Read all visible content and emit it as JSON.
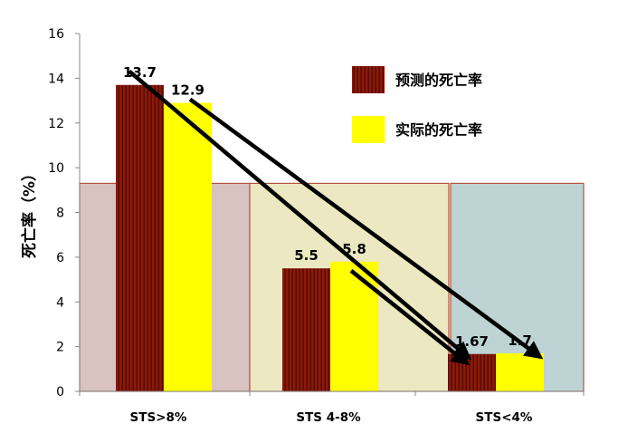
{
  "chart_data": {
    "type": "bar",
    "categories": [
      "STS>8%",
      "STS 4-8%",
      "STS<4%"
    ],
    "series": [
      {
        "name": "预测的死亡率",
        "values": [
          13.7,
          5.5,
          1.67
        ],
        "color": "#8b1a0a"
      },
      {
        "name": "实际的死亡率",
        "values": [
          12.9,
          5.8,
          1.7
        ],
        "color": "#ffff00"
      }
    ],
    "value_labels": [
      [
        "13.7",
        "5.5",
        "1.67"
      ],
      [
        "12.9",
        "5.8",
        "1.7"
      ]
    ],
    "ylabel": "死亡率（%）",
    "ylim": [
      0,
      16
    ],
    "yticks": [
      0,
      2,
      4,
      6,
      8,
      10,
      12,
      14,
      16
    ],
    "legend_position": "top-right",
    "grid": false,
    "background_panels": [
      {
        "category": "STS>8%",
        "color": "#d9c3c1"
      },
      {
        "category": "STS 4-8%",
        "color": "#ece8c1"
      },
      {
        "category": "STS<4%",
        "color": "#bdd3d4"
      }
    ],
    "panel_top_value": 9.3,
    "trend_arrows": [
      {
        "series": "预测的死亡率",
        "from": "STS>8%",
        "to": "STS<4%"
      },
      {
        "series": "实际的死亡率",
        "from": "STS>8%",
        "to": "STS<4%"
      },
      {
        "series": "实际的死亡率",
        "from": "STS 4-8%",
        "to": "STS<4%"
      }
    ]
  }
}
